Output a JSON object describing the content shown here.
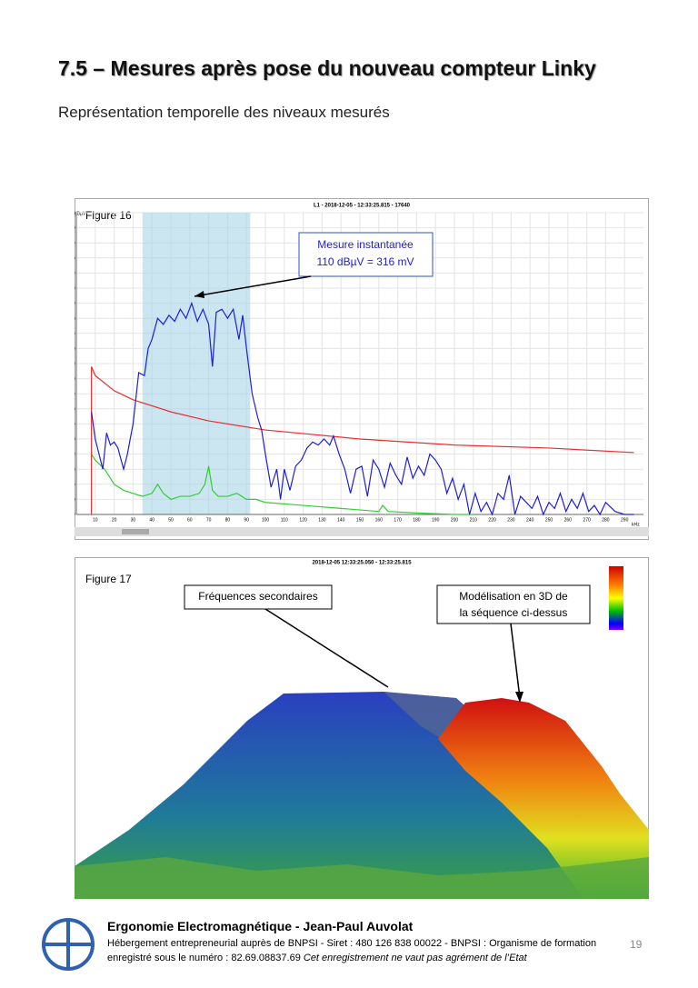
{
  "header": {
    "title": "7.5 – Mesures après pose du nouveau compteur Linky",
    "subtitle": "Représentation temporelle des niveaux mesurés"
  },
  "figure16": {
    "label": "Figure 16",
    "annotation": [
      "Mesure instantanée",
      "110  dBµV = 316 mV"
    ],
    "chart_data": {
      "type": "line",
      "title": "L1 - 2018-12-05 - 12:33:25.815 - 17640",
      "y_label": "dBµV",
      "x_label": "kHz",
      "xlim": [
        0,
        300
      ],
      "ylim": [
        40,
        140
      ],
      "xticks": [
        10,
        20,
        30,
        40,
        50,
        60,
        70,
        80,
        90,
        100,
        110,
        120,
        130,
        140,
        150,
        160,
        170,
        180,
        190,
        200,
        210,
        220,
        230,
        240,
        250,
        260,
        270,
        280,
        290
      ],
      "yticks": [
        40,
        45,
        50,
        55,
        60,
        65,
        70,
        75,
        80,
        85,
        90,
        95,
        100,
        105,
        110,
        115,
        120,
        125,
        130,
        135,
        140
      ],
      "grid": true,
      "highlight": [
        35,
        92
      ],
      "series": [
        {
          "color": "#2020d0",
          "x": [
            8,
            10,
            12,
            14,
            16,
            18,
            20,
            22,
            25,
            27,
            30,
            33,
            36,
            38,
            40,
            43,
            46,
            49,
            52,
            55,
            58,
            61,
            64,
            67,
            70,
            72,
            74,
            77,
            80,
            83,
            86,
            88,
            90,
            93,
            96,
            98,
            100,
            103,
            106,
            108,
            110,
            113,
            116,
            119,
            122,
            125,
            128,
            131,
            134,
            136,
            139,
            142,
            145,
            148,
            151,
            154,
            157,
            160,
            163,
            166,
            169,
            172,
            175,
            178,
            181,
            184,
            187,
            190,
            193,
            196,
            199,
            202,
            205,
            208,
            211,
            214,
            217,
            220,
            223,
            226,
            229,
            232,
            235,
            238,
            241,
            244,
            247,
            250,
            253,
            256,
            259,
            262,
            265,
            268,
            271,
            274,
            277,
            280,
            285,
            290,
            295
          ],
          "values": [
            74,
            65,
            60,
            55,
            67,
            63,
            64,
            62,
            55,
            60,
            70,
            87,
            86,
            95,
            98,
            105,
            103,
            106,
            104,
            108,
            105,
            110,
            104,
            108,
            103,
            89,
            107,
            108,
            105,
            108,
            98,
            106,
            95,
            80,
            72,
            68,
            60,
            49,
            55,
            45,
            55,
            48,
            56,
            58,
            62,
            64,
            63,
            65,
            63,
            66,
            60,
            55,
            47,
            55,
            56,
            46,
            58,
            55,
            49,
            57,
            53,
            50,
            59,
            52,
            56,
            53,
            60,
            58,
            55,
            47,
            52,
            45,
            50,
            40,
            47,
            41,
            44,
            40,
            47,
            45,
            53,
            40,
            46,
            44,
            42,
            46,
            40,
            44,
            42,
            47,
            41,
            45,
            42,
            47,
            41,
            43,
            40,
            44,
            41,
            40,
            40
          ]
        },
        {
          "color": "#e83030",
          "x": [
            8,
            8,
            10,
            20,
            30,
            50,
            70,
            100,
            150,
            200,
            250,
            295
          ],
          "values": [
            40,
            89,
            86,
            81,
            78,
            74,
            71,
            68,
            65,
            63,
            62,
            60.5
          ]
        },
        {
          "color": "#30d030",
          "x": [
            8,
            10,
            15,
            20,
            25,
            30,
            35,
            40,
            43,
            46,
            50,
            55,
            60,
            65,
            68,
            70,
            72,
            75,
            80,
            85,
            90,
            95,
            100,
            120,
            140,
            160,
            162,
            165,
            180,
            200,
            210
          ],
          "values": [
            60,
            58,
            55,
            50,
            48,
            47,
            46,
            47,
            50,
            47,
            45,
            46,
            46,
            47,
            50,
            56,
            48,
            46,
            46,
            47,
            45,
            45,
            44,
            43,
            42,
            41,
            43,
            41,
            40.5,
            40,
            40
          ]
        }
      ]
    }
  },
  "figure17": {
    "label": "Figure 17",
    "title": "2018-12-05 12:33:25.050 - 12:33:25.815",
    "annotation_left": "Fréquences secondaires",
    "annotation_right": [
      "Modélisation en 3D de",
      "la séquence ci-dessus"
    ]
  },
  "footer": {
    "organization": "Ergonomie Electromagnétique - Jean-Paul Auvolat",
    "line1": "Hébergement entrepreneurial auprès de BNPSI - Siret : 480 126 838 00022 - BNPSI : Organisme de formation",
    "line2": "enregistré sous le numéro : 82.69.08837.69 ",
    "line2_italic": "Cet enregistrement ne vaut pas agrément de l’Etat",
    "page": "19"
  }
}
